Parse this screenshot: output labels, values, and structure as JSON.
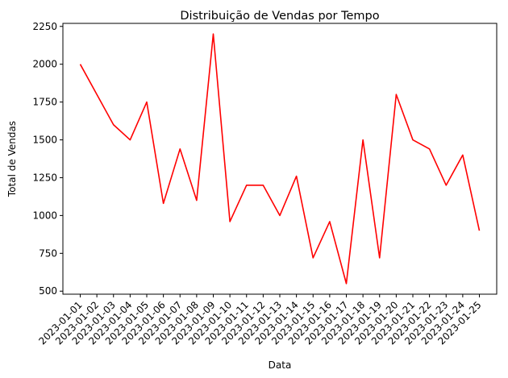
{
  "chart_data": {
    "type": "line",
    "title": "Distribuição de Vendas por Tempo",
    "xlabel": "Data",
    "ylabel": "Total de Vendas",
    "x": [
      "2023-01-01",
      "2023-01-02",
      "2023-01-03",
      "2023-01-04",
      "2023-01-05",
      "2023-01-06",
      "2023-01-07",
      "2023-01-08",
      "2023-01-09",
      "2023-01-10",
      "2023-01-11",
      "2023-01-12",
      "2023-01-13",
      "2023-01-14",
      "2023-01-15",
      "2023-01-16",
      "2023-01-17",
      "2023-01-18",
      "2023-01-19",
      "2023-01-20",
      "2023-01-21",
      "2023-01-22",
      "2023-01-23",
      "2023-01-24",
      "2023-01-25"
    ],
    "series": [
      {
        "color": "#ff0000",
        "values": [
          2000,
          1800,
          1600,
          1500,
          1750,
          1080,
          1440,
          1100,
          2200,
          960,
          1200,
          1200,
          1000,
          1260,
          720,
          960,
          550,
          1500,
          720,
          1800,
          1500,
          1440,
          1200,
          1400,
          900
        ]
      }
    ],
    "ylim": [
      480,
      2270
    ],
    "yticks": [
      500,
      750,
      1000,
      1250,
      1500,
      1750,
      2000,
      2250
    ],
    "grid": false
  }
}
